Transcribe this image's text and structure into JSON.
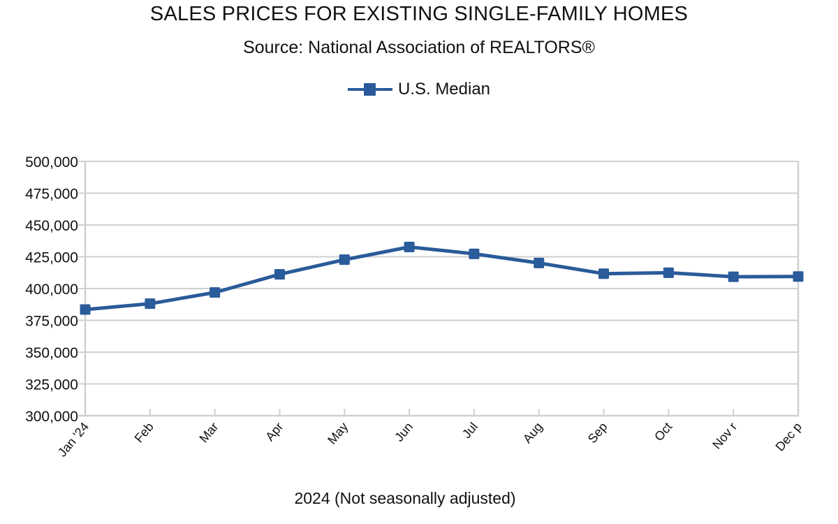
{
  "chart_data": {
    "type": "line",
    "title": "SALES PRICES FOR EXISTING SINGLE-FAMILY HOMES",
    "subtitle": "Source: National Association of REALTORS®",
    "xlabel": "2024  (Not seasonally adjusted)",
    "ylabel": "",
    "categories": [
      "Jan '24",
      "Feb",
      "Mar",
      "Apr",
      "May",
      "Jun",
      "Jul",
      "Aug",
      "Sep",
      "Oct",
      "Nov r",
      "Dec p"
    ],
    "series": [
      {
        "name": "U.S. Median",
        "color": "#2a5b9a",
        "marker": "square",
        "values": [
          383500,
          388100,
          396900,
          411200,
          422700,
          432700,
          427300,
          420100,
          411700,
          412400,
          409300,
          409500
        ]
      }
    ],
    "ylim": [
      300000,
      500000
    ],
    "yticks": [
      300000,
      325000,
      350000,
      375000,
      400000,
      425000,
      450000,
      475000,
      500000
    ],
    "ytick_labels": [
      "300,000",
      "325,000",
      "350,000",
      "375,000",
      "400,000",
      "425,000",
      "450,000",
      "475,000",
      "500,000"
    ],
    "grid": true,
    "legend_position": "top-center",
    "gridline_color": "#d0d0d0"
  }
}
